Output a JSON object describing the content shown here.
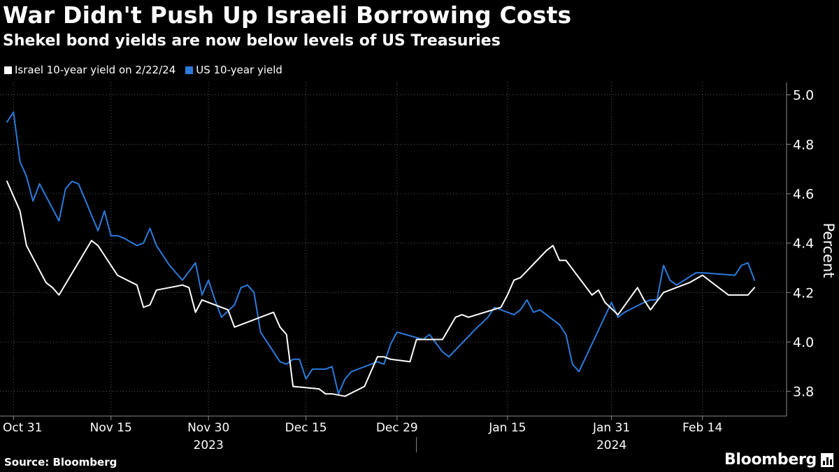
{
  "header": {
    "title": "War Didn't Push Up Israeli Borrowing Costs",
    "subtitle": "Shekel bond yields are now below levels of US Treasuries"
  },
  "legend": {
    "israel_label": "Israel 10-year yield  on 2/22/24",
    "us_label": "US 10-year yield"
  },
  "footer": {
    "source": "Source: Bloomberg",
    "brand": "Bloomberg"
  },
  "colors": {
    "background": "#000000",
    "israel": "#ffffff",
    "us": "#2b7bdc",
    "grid": "#5a5a5a",
    "axis": "#8a8a8a"
  },
  "chart_data": {
    "type": "line",
    "ylabel": "Percent",
    "ylim": [
      3.7,
      5.05
    ],
    "yticks": [
      3.8,
      4.0,
      4.2,
      4.4,
      4.6,
      4.8,
      5.0
    ],
    "x_range": [
      "2023-10-30",
      "2024-02-25"
    ],
    "xticks": [
      {
        "date": "2023-10-31",
        "label": "Oct 31"
      },
      {
        "date": "2023-11-15",
        "label": "Nov 15"
      },
      {
        "date": "2023-11-30",
        "label": "Nov 30"
      },
      {
        "date": "2023-12-15",
        "label": "Dec 15"
      },
      {
        "date": "2023-12-29",
        "label": "Dec 29"
      },
      {
        "date": "2024-01-15",
        "label": "Jan 15"
      },
      {
        "date": "2024-01-31",
        "label": "Jan 31"
      },
      {
        "date": "2024-02-14",
        "label": "Feb 14"
      }
    ],
    "year_labels": [
      {
        "date": "2023-11-30",
        "label": "2023"
      },
      {
        "date": "2024-01-31",
        "label": "2024"
      }
    ],
    "year_divider_date": "2024-01-01",
    "series": [
      {
        "name": "Israel 10-year yield",
        "color": "#ffffff",
        "points": [
          [
            "2023-10-30",
            4.65
          ],
          [
            "2023-11-01",
            4.53
          ],
          [
            "2023-11-02",
            4.39
          ],
          [
            "2023-11-05",
            4.24
          ],
          [
            "2023-11-06",
            4.22
          ],
          [
            "2023-11-07",
            4.19
          ],
          [
            "2023-11-12",
            4.41
          ],
          [
            "2023-11-13",
            4.39
          ],
          [
            "2023-11-15",
            4.31
          ],
          [
            "2023-11-16",
            4.27
          ],
          [
            "2023-11-19",
            4.23
          ],
          [
            "2023-11-20",
            4.14
          ],
          [
            "2023-11-21",
            4.15
          ],
          [
            "2023-11-22",
            4.21
          ],
          [
            "2023-11-26",
            4.23
          ],
          [
            "2023-11-27",
            4.22
          ],
          [
            "2023-11-28",
            4.12
          ],
          [
            "2023-11-29",
            4.17
          ],
          [
            "2023-12-03",
            4.13
          ],
          [
            "2023-12-04",
            4.06
          ],
          [
            "2023-12-10",
            4.12
          ],
          [
            "2023-12-11",
            4.06
          ],
          [
            "2023-12-12",
            4.03
          ],
          [
            "2023-12-13",
            3.82
          ],
          [
            "2023-12-17",
            3.81
          ],
          [
            "2023-12-18",
            3.79
          ],
          [
            "2023-12-19",
            3.79
          ],
          [
            "2023-12-21",
            3.78
          ],
          [
            "2023-12-24",
            3.82
          ],
          [
            "2023-12-26",
            3.94
          ],
          [
            "2023-12-27",
            3.94
          ],
          [
            "2023-12-28",
            3.93
          ],
          [
            "2023-12-31",
            3.92
          ],
          [
            "2024-01-01",
            4.01
          ],
          [
            "2024-01-02",
            4.01
          ],
          [
            "2024-01-03",
            4.01
          ],
          [
            "2024-01-04",
            4.01
          ],
          [
            "2024-01-05",
            4.01
          ],
          [
            "2024-01-07",
            4.1
          ],
          [
            "2024-01-08",
            4.11
          ],
          [
            "2024-01-09",
            4.1
          ],
          [
            "2024-01-14",
            4.14
          ],
          [
            "2024-01-15",
            4.19
          ],
          [
            "2024-01-16",
            4.25
          ],
          [
            "2024-01-17",
            4.26
          ],
          [
            "2024-01-21",
            4.37
          ],
          [
            "2024-01-22",
            4.39
          ],
          [
            "2024-01-23",
            4.33
          ],
          [
            "2024-01-24",
            4.33
          ],
          [
            "2024-01-28",
            4.19
          ],
          [
            "2024-01-29",
            4.21
          ],
          [
            "2024-01-30",
            4.16
          ],
          [
            "2024-02-01",
            4.11
          ],
          [
            "2024-02-04",
            4.22
          ],
          [
            "2024-02-05",
            4.17
          ],
          [
            "2024-02-06",
            4.13
          ],
          [
            "2024-02-08",
            4.2
          ],
          [
            "2024-02-11",
            4.23
          ],
          [
            "2024-02-12",
            4.24
          ],
          [
            "2024-02-14",
            4.27
          ],
          [
            "2024-02-18",
            4.19
          ],
          [
            "2024-02-19",
            4.19
          ],
          [
            "2024-02-20",
            4.19
          ],
          [
            "2024-02-21",
            4.19
          ],
          [
            "2024-02-22",
            4.22
          ]
        ]
      },
      {
        "name": "US 10-year yield",
        "color": "#2b7bdc",
        "points": [
          [
            "2023-10-30",
            4.89
          ],
          [
            "2023-10-31",
            4.93
          ],
          [
            "2023-11-01",
            4.73
          ],
          [
            "2023-11-02",
            4.67
          ],
          [
            "2023-11-03",
            4.57
          ],
          [
            "2023-11-04",
            4.64
          ],
          [
            "2023-11-07",
            4.49
          ],
          [
            "2023-11-08",
            4.62
          ],
          [
            "2023-11-09",
            4.65
          ],
          [
            "2023-11-10",
            4.64
          ],
          [
            "2023-11-13",
            4.45
          ],
          [
            "2023-11-14",
            4.53
          ],
          [
            "2023-11-15",
            4.43
          ],
          [
            "2023-11-16",
            4.43
          ],
          [
            "2023-11-17",
            4.42
          ],
          [
            "2023-11-19",
            4.39
          ],
          [
            "2023-11-20",
            4.4
          ],
          [
            "2023-11-21",
            4.46
          ],
          [
            "2023-11-22",
            4.39
          ],
          [
            "2023-11-24",
            4.31
          ],
          [
            "2023-11-26",
            4.25
          ],
          [
            "2023-11-28",
            4.32
          ],
          [
            "2023-11-29",
            4.19
          ],
          [
            "2023-11-30",
            4.25
          ],
          [
            "2023-12-01",
            4.17
          ],
          [
            "2023-12-02",
            4.1
          ],
          [
            "2023-12-04",
            4.15
          ],
          [
            "2023-12-05",
            4.22
          ],
          [
            "2023-12-06",
            4.23
          ],
          [
            "2023-12-07",
            4.2
          ],
          [
            "2023-12-08",
            4.04
          ],
          [
            "2023-12-11",
            3.92
          ],
          [
            "2023-12-12",
            3.91
          ],
          [
            "2023-12-13",
            3.93
          ],
          [
            "2023-12-14",
            3.93
          ],
          [
            "2023-12-15",
            3.85
          ],
          [
            "2023-12-16",
            3.89
          ],
          [
            "2023-12-18",
            3.89
          ],
          [
            "2023-12-19",
            3.9
          ],
          [
            "2023-12-20",
            3.79
          ],
          [
            "2023-12-21",
            3.85
          ],
          [
            "2023-12-22",
            3.88
          ],
          [
            "2023-12-26",
            3.92
          ],
          [
            "2023-12-27",
            3.91
          ],
          [
            "2023-12-28",
            3.99
          ],
          [
            "2023-12-29",
            4.04
          ],
          [
            "2024-01-02",
            4.01
          ],
          [
            "2024-01-03",
            4.03
          ],
          [
            "2024-01-05",
            3.96
          ],
          [
            "2024-01-06",
            3.94
          ],
          [
            "2024-01-10",
            4.05
          ],
          [
            "2024-01-12",
            4.1
          ],
          [
            "2024-01-13",
            4.14
          ],
          [
            "2024-01-16",
            4.11
          ],
          [
            "2024-01-17",
            4.13
          ],
          [
            "2024-01-18",
            4.17
          ],
          [
            "2024-01-19",
            4.12
          ],
          [
            "2024-01-20",
            4.13
          ],
          [
            "2024-01-23",
            4.07
          ],
          [
            "2024-01-24",
            4.03
          ],
          [
            "2024-01-25",
            3.91
          ],
          [
            "2024-01-26",
            3.88
          ],
          [
            "2024-01-31",
            4.16
          ],
          [
            "2024-02-01",
            4.1
          ],
          [
            "2024-02-02",
            4.12
          ],
          [
            "2024-02-05",
            4.16
          ],
          [
            "2024-02-06",
            4.17
          ],
          [
            "2024-02-07",
            4.17
          ],
          [
            "2024-02-08",
            4.31
          ],
          [
            "2024-02-09",
            4.25
          ],
          [
            "2024-02-10",
            4.23
          ],
          [
            "2024-02-13",
            4.28
          ],
          [
            "2024-02-14",
            4.28
          ],
          [
            "2024-02-19",
            4.27
          ],
          [
            "2024-02-20",
            4.31
          ],
          [
            "2024-02-21",
            4.32
          ],
          [
            "2024-02-22",
            4.25
          ]
        ]
      }
    ]
  }
}
